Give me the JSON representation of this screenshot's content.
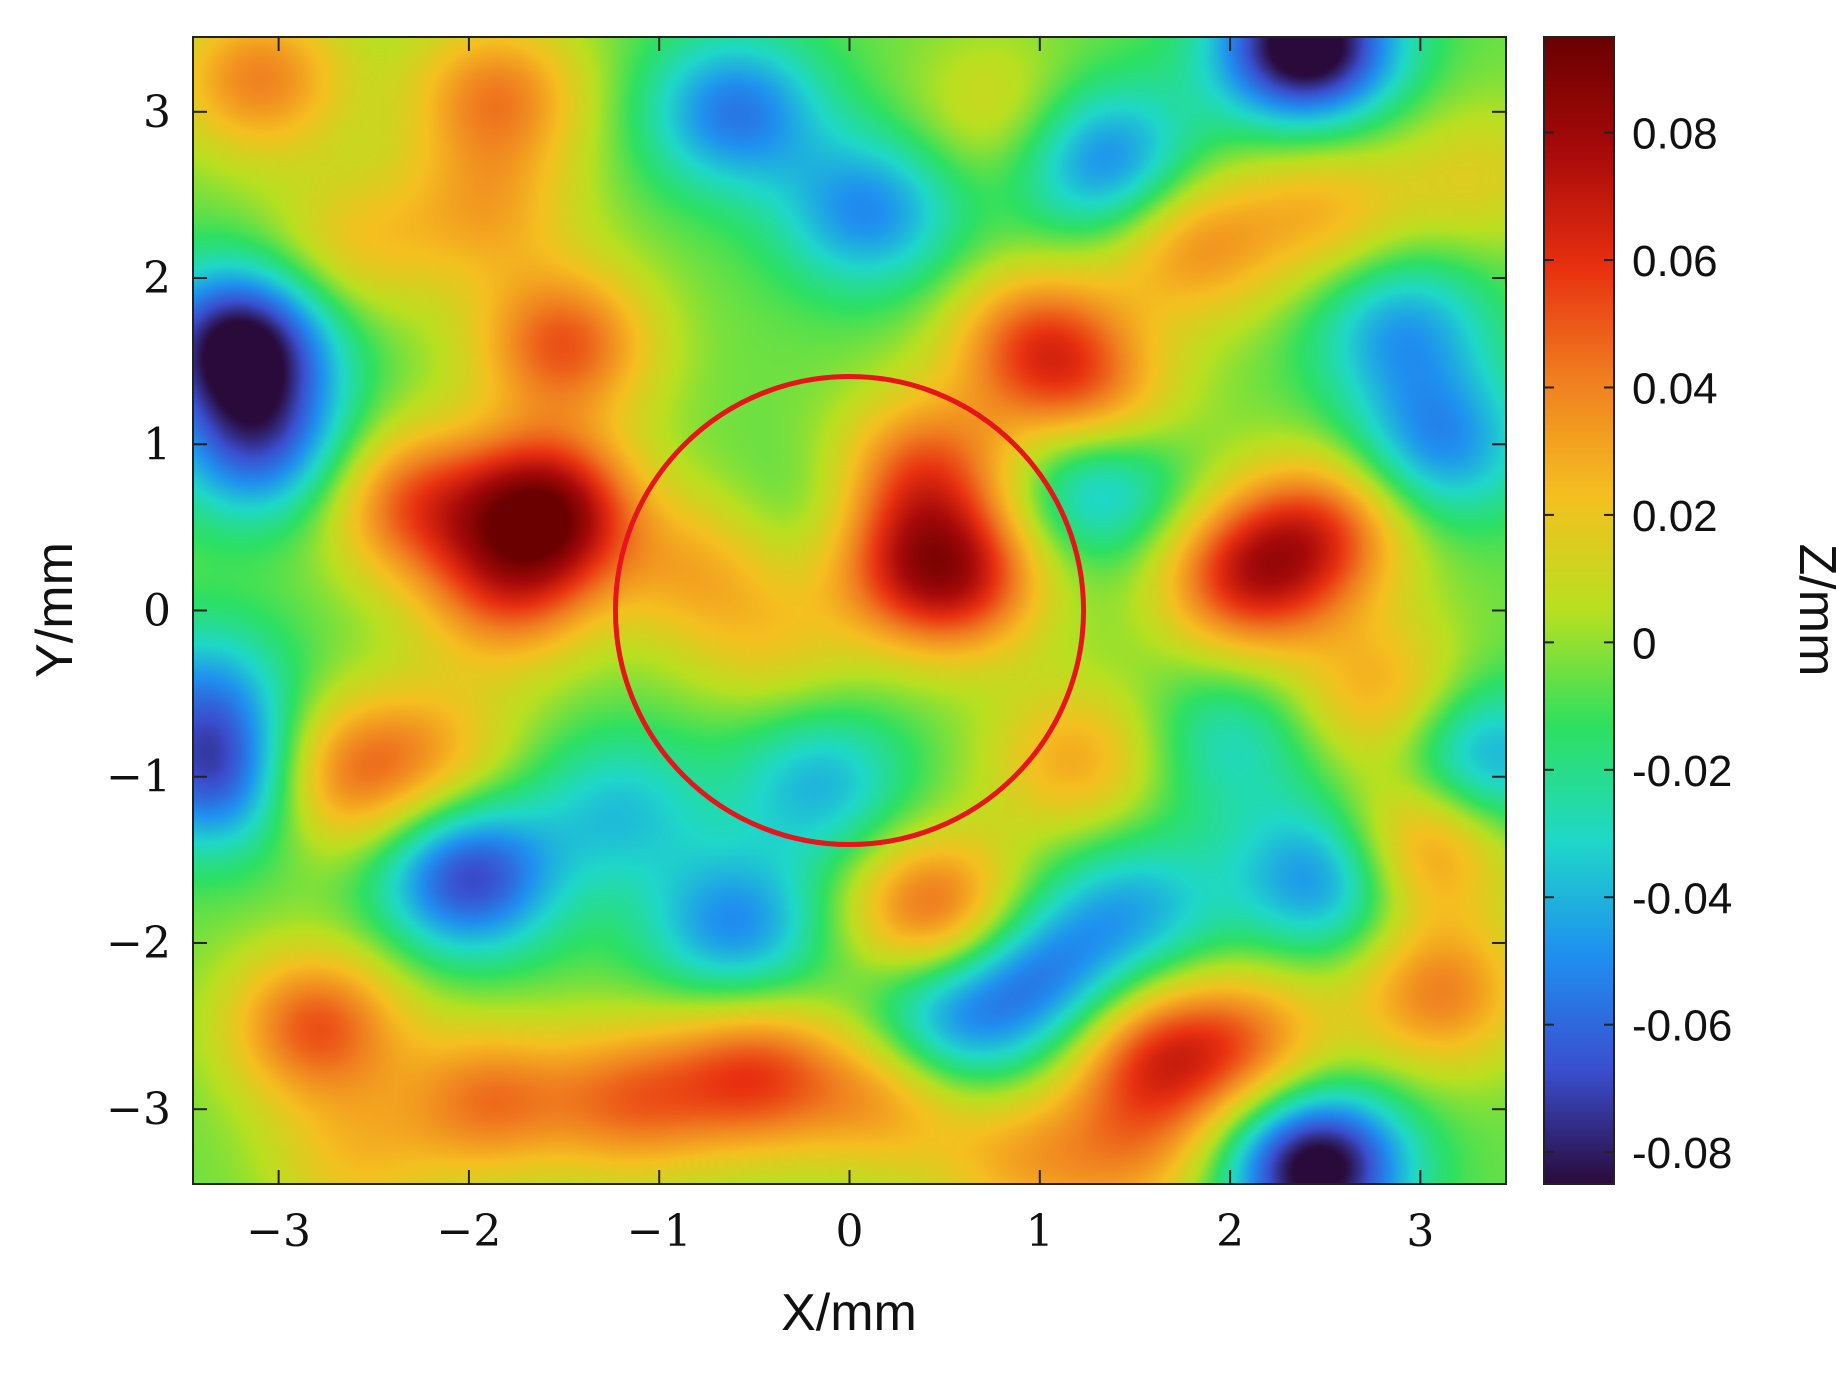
{
  "chart_data": {
    "type": "heatmap",
    "title": "",
    "xlabel": "X/mm",
    "ylabel": "Y/mm",
    "colorbar_label": "Z/mm",
    "xlim": [
      -3.45,
      3.45
    ],
    "ylim": [
      -3.45,
      3.45
    ],
    "x_ticks": [
      -3,
      -2,
      -1,
      0,
      1,
      2,
      3
    ],
    "x_tick_labels": [
      "−3",
      "−2",
      "−1",
      "0",
      "1",
      "2",
      "3"
    ],
    "y_ticks": [
      -3,
      -2,
      -1,
      0,
      1,
      2,
      3
    ],
    "y_tick_labels": [
      "−3",
      "−2",
      "−1",
      "0",
      "1",
      "2",
      "3"
    ],
    "color_range": [
      -0.085,
      0.095
    ],
    "colorbar_ticks": [
      -0.08,
      -0.06,
      -0.04,
      -0.02,
      0,
      0.02,
      0.04,
      0.06,
      0.08
    ],
    "colorbar_tick_labels": [
      "-0.08",
      "-0.06",
      "-0.04",
      "-0.02",
      "0",
      "0.02",
      "0.04",
      "0.06",
      "0.08"
    ],
    "colormap": [
      "#2a0a3a",
      "#3a4fd0",
      "#1f90f0",
      "#1fd8c8",
      "#2ee060",
      "#b8e020",
      "#f5c020",
      "#f08020",
      "#e83010",
      "#a80a0a",
      "#6a0000"
    ],
    "circle": {
      "center": [
        0,
        0
      ],
      "radius": 1.23,
      "color": "#e8141c"
    },
    "peaks": [
      {
        "x": -1.6,
        "y": 0.6,
        "z": 0.09
      },
      {
        "x": -1.5,
        "y": 1.6,
        "z": 0.055
      },
      {
        "x": -2.3,
        "y": 0.65,
        "z": 0.05
      },
      {
        "x": -1.8,
        "y": 0.1,
        "z": 0.045
      },
      {
        "x": -1.9,
        "y": 2.4,
        "z": 0.03
      },
      {
        "x": -1.85,
        "y": 3.1,
        "z": 0.045
      },
      {
        "x": -3.1,
        "y": 3.2,
        "z": 0.045
      },
      {
        "x": -2.6,
        "y": 2.2,
        "z": 0.025
      },
      {
        "x": 0.55,
        "y": 0.2,
        "z": 0.07
      },
      {
        "x": 0.4,
        "y": 0.85,
        "z": 0.05
      },
      {
        "x": 0.15,
        "y": 0.35,
        "z": 0.035
      },
      {
        "x": -0.8,
        "y": 0.25,
        "z": 0.03
      },
      {
        "x": -0.4,
        "y": -0.2,
        "z": 0.02
      },
      {
        "x": 1.0,
        "y": 1.6,
        "z": 0.055
      },
      {
        "x": 1.3,
        "y": 1.2,
        "z": 0.04
      },
      {
        "x": 2.1,
        "y": 0.2,
        "z": 0.065
      },
      {
        "x": 2.5,
        "y": 0.5,
        "z": 0.05
      },
      {
        "x": 1.8,
        "y": 2.2,
        "z": 0.04
      },
      {
        "x": 2.5,
        "y": 2.4,
        "z": 0.03
      },
      {
        "x": 0.8,
        "y": 3.0,
        "z": 0.02
      },
      {
        "x": 3.3,
        "y": 2.6,
        "z": 0.02
      },
      {
        "x": 3.0,
        "y": -1.4,
        "z": 0.05
      },
      {
        "x": 3.1,
        "y": -2.3,
        "z": 0.045
      },
      {
        "x": 2.8,
        "y": -0.5,
        "z": 0.035
      },
      {
        "x": 1.2,
        "y": -0.9,
        "z": 0.035
      },
      {
        "x": 0.45,
        "y": -1.8,
        "z": 0.055
      },
      {
        "x": 0.2,
        "y": -2.9,
        "z": 0.04
      },
      {
        "x": -0.5,
        "y": -2.8,
        "z": 0.055
      },
      {
        "x": -1.15,
        "y": -2.95,
        "z": 0.045
      },
      {
        "x": -1.9,
        "y": -2.95,
        "z": 0.045
      },
      {
        "x": -2.8,
        "y": -2.5,
        "z": 0.055
      },
      {
        "x": -2.7,
        "y": -1.0,
        "z": 0.045
      },
      {
        "x": -2.2,
        "y": -0.85,
        "z": 0.03
      },
      {
        "x": 1.6,
        "y": -2.7,
        "z": 0.055
      },
      {
        "x": 2.1,
        "y": -2.6,
        "z": 0.04
      },
      {
        "x": 1.5,
        "y": -3.3,
        "z": 0.03
      },
      {
        "x": -2.6,
        "y": -3.3,
        "z": 0.025
      },
      {
        "x": 0.9,
        "y": -3.3,
        "z": 0.03
      },
      {
        "x": -3.2,
        "y": 1.6,
        "z": -0.085
      },
      {
        "x": -3.1,
        "y": 1.0,
        "z": -0.055
      },
      {
        "x": -3.3,
        "y": -1.0,
        "z": -0.06
      },
      {
        "x": -3.4,
        "y": -0.5,
        "z": -0.035
      },
      {
        "x": -2.0,
        "y": -1.6,
        "z": -0.065
      },
      {
        "x": -0.6,
        "y": 3.0,
        "z": -0.05
      },
      {
        "x": 0.1,
        "y": 2.4,
        "z": -0.045
      },
      {
        "x": 1.35,
        "y": 2.7,
        "z": -0.05
      },
      {
        "x": 2.4,
        "y": 3.4,
        "z": -0.095
      },
      {
        "x": 1.3,
        "y": 0.8,
        "z": -0.045
      },
      {
        "x": -0.15,
        "y": -1.05,
        "z": -0.035
      },
      {
        "x": -0.6,
        "y": -1.9,
        "z": -0.045
      },
      {
        "x": 1.0,
        "y": -2.2,
        "z": -0.045
      },
      {
        "x": 0.5,
        "y": -2.5,
        "z": -0.045
      },
      {
        "x": 2.5,
        "y": -1.6,
        "z": -0.05
      },
      {
        "x": 2.45,
        "y": -3.35,
        "z": -0.09
      },
      {
        "x": 3.3,
        "y": -0.9,
        "z": -0.045
      },
      {
        "x": 3.1,
        "y": 1.0,
        "z": -0.045
      },
      {
        "x": 2.9,
        "y": 1.7,
        "z": -0.04
      },
      {
        "x": 1.5,
        "y": -1.8,
        "z": -0.035
      },
      {
        "x": 2.0,
        "y": -0.8,
        "z": -0.025
      },
      {
        "x": -1.2,
        "y": -1.2,
        "z": -0.03
      },
      {
        "x": -0.1,
        "y": 0.5,
        "z": -0.02
      }
    ]
  }
}
